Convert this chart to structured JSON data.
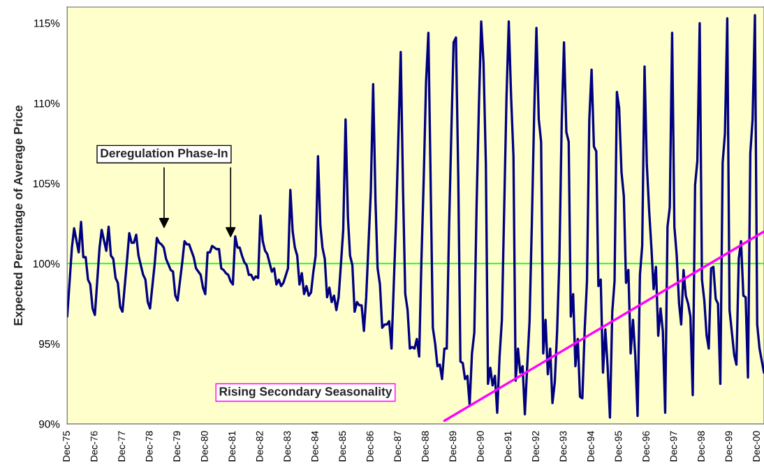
{
  "chart_data": {
    "type": "line",
    "ylabel": "Expected Percentage of Average Price",
    "series": [
      {
        "color": "#000080",
        "x": [
          "1975-12",
          "1976-02",
          "1976-03",
          "1976-05",
          "1976-06",
          "1976-07",
          "1976-08",
          "1976-09",
          "1976-10",
          "1976-11",
          "1976-12",
          "1977-02",
          "1977-03",
          "1977-05",
          "1977-06",
          "1977-07",
          "1977-08",
          "1977-09",
          "1977-10",
          "1977-11",
          "1977-12",
          "1978-02",
          "1978-03",
          "1978-04",
          "1978-05",
          "1978-06",
          "1978-07",
          "1978-09",
          "1978-10",
          "1978-11",
          "1978-12",
          "1979-02",
          "1979-03",
          "1979-04",
          "1979-05",
          "1979-06",
          "1979-07",
          "1979-09",
          "1979-10",
          "1979-11",
          "1979-12",
          "1980-02",
          "1980-03",
          "1980-04",
          "1980-05",
          "1980-07",
          "1980-08",
          "1980-09",
          "1980-10",
          "1980-11",
          "1980-12",
          "1981-01",
          "1981-02",
          "1981-03",
          "1981-05",
          "1981-06",
          "1981-07",
          "1981-08",
          "1981-09",
          "1981-10",
          "1981-11",
          "1981-12",
          "1982-01",
          "1982-02",
          "1982-03",
          "1982-04",
          "1982-05",
          "1982-06",
          "1982-07",
          "1982-08",
          "1982-09",
          "1982-10",
          "1982-11",
          "1982-12",
          "1983-01",
          "1983-02",
          "1983-03",
          "1983-05",
          "1983-06",
          "1983-07",
          "1983-08",
          "1983-09",
          "1983-10",
          "1983-12",
          "1984-01",
          "1984-02",
          "1984-03",
          "1984-04",
          "1984-05",
          "1984-06",
          "1984-07",
          "1984-08",
          "1984-09",
          "1984-10",
          "1984-11",
          "1984-12",
          "1985-01",
          "1985-02",
          "1985-03",
          "1985-04",
          "1985-05",
          "1985-06",
          "1985-07",
          "1985-08",
          "1985-09",
          "1985-10",
          "1985-11",
          "1985-12",
          "1986-01",
          "1986-02",
          "1986-03",
          "1986-04",
          "1986-05",
          "1986-06",
          "1986-07",
          "1986-08",
          "1986-09",
          "1986-10",
          "1986-12",
          "1987-01",
          "1987-02",
          "1987-03",
          "1987-04",
          "1987-05",
          "1987-06",
          "1987-07",
          "1987-08",
          "1987-09",
          "1987-10",
          "1987-11",
          "1988-01",
          "1988-02",
          "1988-03",
          "1988-04",
          "1988-05",
          "1988-06",
          "1988-07",
          "1988-08",
          "1988-09",
          "1988-10",
          "1988-11",
          "1988-12",
          "1989-01",
          "1989-03",
          "1989-04",
          "1989-05",
          "1989-06",
          "1989-07",
          "1989-08",
          "1989-09",
          "1989-10",
          "1989-11",
          "1989-12",
          "1990-01",
          "1990-02",
          "1990-03",
          "1990-04",
          "1990-05",
          "1990-06",
          "1990-07",
          "1990-08",
          "1990-09",
          "1990-10",
          "1990-11",
          "1990-12",
          "1991-01",
          "1991-02",
          "1991-03",
          "1991-04",
          "1991-05",
          "1991-06",
          "1991-07",
          "1991-08",
          "1991-09",
          "1991-11",
          "1991-12",
          "1992-01",
          "1992-02",
          "1992-03",
          "1992-04",
          "1992-05",
          "1992-06",
          "1992-07",
          "1992-08",
          "1992-09",
          "1992-10",
          "1992-11",
          "1992-12",
          "1993-01",
          "1993-02",
          "1993-03",
          "1993-04",
          "1993-05",
          "1993-06",
          "1993-07",
          "1993-08",
          "1993-09",
          "1993-10",
          "1993-11",
          "1993-12",
          "1994-01",
          "1994-02",
          "1994-03",
          "1994-04",
          "1994-05",
          "1994-06",
          "1994-07",
          "1994-08",
          "1994-09",
          "1994-10",
          "1994-11",
          "1994-12",
          "1995-01",
          "1995-02",
          "1995-03",
          "1995-04",
          "1995-05",
          "1995-06",
          "1995-07",
          "1995-08",
          "1995-09",
          "1995-10",
          "1995-11",
          "1995-12",
          "1996-01",
          "1996-02",
          "1996-03",
          "1996-04",
          "1996-05",
          "1996-06",
          "1996-07",
          "1996-08",
          "1996-09",
          "1996-10",
          "1996-11",
          "1996-12",
          "1997-01",
          "1997-02",
          "1997-03",
          "1997-04",
          "1997-05",
          "1997-06",
          "1997-07",
          "1997-08",
          "1997-09",
          "1997-10",
          "1997-11",
          "1997-12",
          "1998-01",
          "1998-02",
          "1998-03",
          "1998-04",
          "1998-05",
          "1998-06",
          "1998-07",
          "1998-08",
          "1998-09",
          "1998-10",
          "1998-11",
          "1998-12",
          "1999-01",
          "1999-02",
          "1999-03",
          "1999-04",
          "1999-05",
          "1999-06",
          "1999-07",
          "1999-08",
          "1999-09",
          "1999-10",
          "1999-11",
          "1999-12",
          "2000-01",
          "2000-02",
          "2000-03",
          "2000-04",
          "2000-05",
          "2000-06",
          "2000-07",
          "2000-08",
          "2000-09",
          "2000-10",
          "2000-11",
          "2000-12",
          "2001-01",
          "2001-02",
          "2001-03"
        ],
        "values": [
          96.7,
          101.0,
          102.2,
          100.7,
          102.6,
          100.4,
          100.4,
          99.0,
          98.7,
          97.2,
          96.8,
          101.0,
          102.1,
          100.8,
          102.3,
          100.5,
          100.3,
          99.1,
          98.8,
          97.3,
          97.0,
          100.3,
          101.9,
          101.3,
          101.3,
          101.8,
          100.5,
          99.3,
          99.0,
          97.6,
          97.2,
          100.0,
          101.6,
          101.3,
          101.2,
          101.0,
          100.3,
          99.6,
          99.5,
          98.0,
          97.7,
          100.1,
          101.4,
          101.2,
          101.2,
          100.4,
          99.7,
          99.5,
          99.3,
          98.5,
          98.1,
          100.7,
          100.7,
          101.1,
          100.9,
          100.9,
          99.7,
          99.6,
          99.4,
          99.3,
          98.9,
          98.7,
          101.7,
          101.0,
          101.0,
          100.5,
          100.1,
          99.9,
          99.3,
          99.3,
          99.0,
          99.2,
          99.1,
          103.0,
          101.4,
          100.8,
          100.6,
          99.5,
          99.7,
          98.7,
          99.0,
          98.6,
          98.8,
          99.7,
          104.6,
          102.0,
          101.0,
          100.5,
          98.7,
          99.4,
          98.1,
          98.6,
          98.0,
          98.2,
          99.5,
          100.5,
          106.7,
          102.4,
          101.0,
          100.3,
          97.9,
          98.5,
          97.6,
          98.0,
          97.1,
          97.9,
          100.0,
          102.1,
          109.0,
          102.9,
          100.5,
          99.9,
          97.0,
          97.6,
          97.4,
          97.4,
          95.8,
          97.9,
          104.5,
          111.2,
          103.9,
          99.7,
          98.7,
          96.0,
          96.2,
          96.2,
          96.4,
          94.7,
          98.7,
          102.8,
          113.2,
          104.5,
          98.1,
          97.1,
          94.7,
          94.8,
          94.7,
          95.3,
          94.2,
          100.2,
          105.4,
          111.3,
          114.4,
          96.0,
          95.0,
          93.6,
          93.7,
          92.8,
          94.7,
          94.7,
          102.1,
          108.2,
          113.8,
          114.1,
          105.3,
          93.9,
          93.8,
          92.8,
          93.0,
          91.2,
          94.4,
          95.7,
          103.6,
          109.9,
          115.1,
          112.5,
          106.2,
          92.5,
          93.5,
          92.4,
          93.0,
          90.7,
          94.2,
          96.5,
          110.4,
          115.1,
          110.4,
          106.7,
          92.7,
          94.7,
          93.2,
          93.6,
          90.6,
          93.6,
          96.4,
          102.4,
          109.3,
          114.7,
          109.0,
          107.6,
          94.4,
          96.5,
          93.1,
          94.7,
          91.3,
          92.6,
          95.8,
          100.3,
          108.9,
          113.8,
          108.2,
          107.6,
          96.7,
          98.1,
          93.6,
          95.3,
          91.7,
          91.6,
          95.9,
          98.9,
          109.0,
          112.1,
          107.3,
          107.0,
          98.6,
          99.0,
          93.2,
          95.9,
          93.6,
          90.4,
          97.0,
          98.9,
          110.7,
          109.7,
          105.7,
          104.2,
          98.8,
          99.6,
          94.4,
          96.5,
          94.3,
          90.5,
          99.3,
          101.1,
          112.3,
          106.2,
          103.3,
          100.9,
          98.4,
          99.8,
          95.5,
          97.2,
          95.8,
          90.7,
          102.3,
          103.5,
          114.4,
          102.3,
          100.5,
          97.5,
          96.2,
          99.6,
          98.0,
          97.5,
          96.7,
          91.8,
          104.9,
          106.4,
          115.0,
          99.0,
          97.7,
          95.5,
          94.7,
          99.7,
          99.8,
          97.8,
          97.5,
          92.5,
          106.3,
          108.1,
          115.3,
          97.1,
          95.7,
          94.3,
          93.7,
          100.3,
          101.4,
          98.0,
          97.9,
          92.9,
          106.9,
          109.0,
          115.5,
          96.2,
          94.7,
          93.9,
          93.2
        ]
      },
      {
        "color": "#ff00ff",
        "x": [
          "1989-08",
          "2001-03"
        ],
        "values": [
          90.2,
          102.0
        ]
      }
    ],
    "xlim": [
      "1975-12",
      "2001-03"
    ],
    "xticks": [
      {
        "value": "1975-12",
        "label": "Dec-75"
      },
      {
        "value": "1976-12",
        "label": "Dec-76"
      },
      {
        "value": "1977-12",
        "label": "Dec-77"
      },
      {
        "value": "1978-12",
        "label": "Dec-78"
      },
      {
        "value": "1979-12",
        "label": "Dec-79"
      },
      {
        "value": "1980-12",
        "label": "Dec-80"
      },
      {
        "value": "1981-12",
        "label": "Dec-81"
      },
      {
        "value": "1982-12",
        "label": "Dec-82"
      },
      {
        "value": "1983-12",
        "label": "Dec-83"
      },
      {
        "value": "1984-12",
        "label": "Dec-84"
      },
      {
        "value": "1985-12",
        "label": "Dec-85"
      },
      {
        "value": "1986-12",
        "label": "Dec-86"
      },
      {
        "value": "1987-12",
        "label": "Dec-87"
      },
      {
        "value": "1988-12",
        "label": "Dec-88"
      },
      {
        "value": "1989-12",
        "label": "Dec-89"
      },
      {
        "value": "1990-12",
        "label": "Dec-90"
      },
      {
        "value": "1991-12",
        "label": "Dec-91"
      },
      {
        "value": "1992-12",
        "label": "Dec-92"
      },
      {
        "value": "1993-12",
        "label": "Dec-93"
      },
      {
        "value": "1994-12",
        "label": "Dec-94"
      },
      {
        "value": "1995-12",
        "label": "Dec-95"
      },
      {
        "value": "1996-12",
        "label": "Dec-96"
      },
      {
        "value": "1997-12",
        "label": "Dec-97"
      },
      {
        "value": "1998-12",
        "label": "Dec-98"
      },
      {
        "value": "1999-12",
        "label": "Dec-99"
      },
      {
        "value": "2000-12",
        "label": "Dec-00"
      }
    ],
    "ylim": [
      90,
      116
    ],
    "yticks": [
      {
        "value": 90,
        "label": "90%"
      },
      {
        "value": 95,
        "label": "95%"
      },
      {
        "value": 100,
        "label": "100%"
      },
      {
        "value": 105,
        "label": "105%"
      },
      {
        "value": 110,
        "label": "110%"
      },
      {
        "value": 115,
        "label": "115%"
      }
    ],
    "ref_lines": [
      {
        "axis": "y",
        "value": 100,
        "color": "#00ff00"
      }
    ],
    "annotations": [
      "Deregulation Phase-In",
      "Rising Secondary Seasonality"
    ],
    "grid": false,
    "legend": false
  }
}
